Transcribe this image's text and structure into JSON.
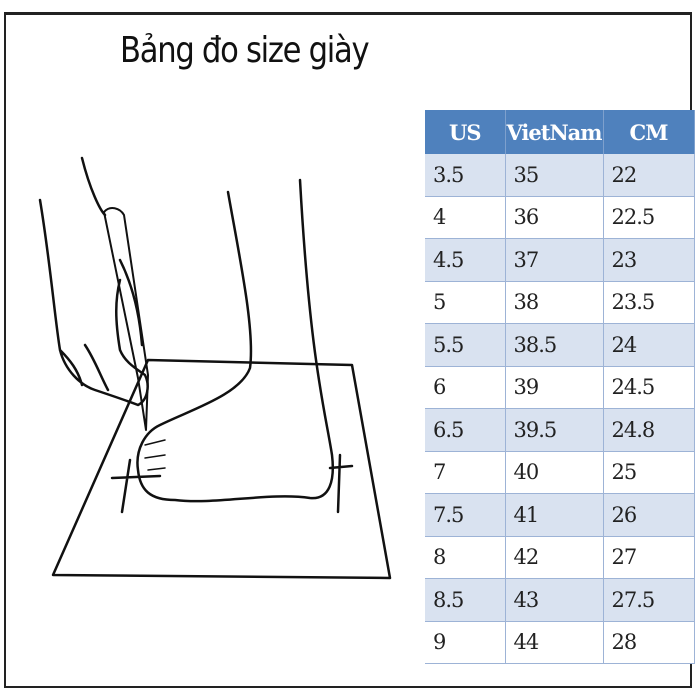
{
  "title": "Bảng đo size giày",
  "colors": {
    "header": "#4f81bd",
    "row_alt": "#d9e2f0"
  },
  "table": {
    "headers": [
      "US",
      "VietNam",
      "CM"
    ],
    "rows": [
      [
        "3.5",
        "35",
        "22"
      ],
      [
        "4",
        "36",
        "22.5"
      ],
      [
        "4.5",
        "37",
        "23"
      ],
      [
        "5",
        "38",
        "23.5"
      ],
      [
        "5.5",
        "38.5",
        "24"
      ],
      [
        "6",
        "39",
        "24.5"
      ],
      [
        "6.5",
        "39.5",
        "24.8"
      ],
      [
        "7",
        "40",
        "25"
      ],
      [
        "7.5",
        "41",
        "26"
      ],
      [
        "8",
        "42",
        "27"
      ],
      [
        "8.5",
        "43",
        "27.5"
      ],
      [
        "9",
        "44",
        "28"
      ]
    ]
  }
}
